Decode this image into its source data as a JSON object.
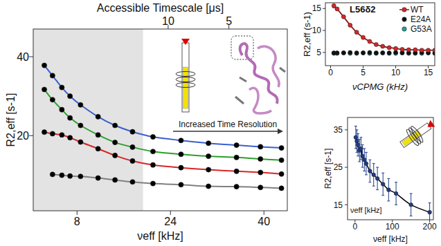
{
  "chart_data": [
    {
      "type": "line",
      "x_label": "νeff [kHz]",
      "y_label": "R2,eff [s-1]",
      "top_axis": {
        "label": "Accessible Timescale [μs]",
        "ticks": [
          {
            "value": 23.6,
            "label": "10"
          },
          {
            "value": 34,
            "label": "5"
          }
        ]
      },
      "shaded_region": [
        0.5,
        19.3
      ],
      "annotation": "Increased Time Resolution",
      "x": [
        2.4,
        3.8,
        5.4,
        6.8,
        8.6,
        11.6,
        14.5,
        17.5,
        21,
        25.8,
        30.5,
        35.3,
        39.4,
        43
      ],
      "series": [
        {
          "color": "#3a5fcd",
          "marker": "circle",
          "values": [
            37.8,
            35.2,
            32.2,
            30.0,
            27.8,
            24.8,
            22.6,
            21.0,
            19.7,
            18.8,
            18.1,
            17.6,
            17.2,
            16.9
          ]
        },
        {
          "color": "#2ca02c",
          "marker": "circle",
          "values": [
            31.7,
            29.1,
            26.6,
            24.5,
            22.6,
            20.2,
            18.3,
            17.1,
            16.0,
            15.3,
            14.8,
            14.5,
            14.1,
            13.8
          ]
        },
        {
          "color": "#d62728",
          "marker": "circle",
          "values": [
            20.9,
            20.5,
            20.2,
            19.5,
            18.4,
            16.7,
            15.0,
            13.6,
            12.6,
            11.9,
            11.4,
            11.0,
            10.7,
            10.3
          ]
        },
        {
          "color": "#808080",
          "marker": "circle",
          "values": [
            null,
            10.2,
            10.0,
            9.8,
            9.7,
            9.3,
            8.8,
            8.3,
            7.9,
            7.6,
            7.2,
            7.1,
            6.9,
            6.7
          ]
        }
      ],
      "xlim": [
        0.5,
        44
      ],
      "ylim": [
        1,
        47
      ],
      "xticks": [
        8,
        24,
        40
      ],
      "yticks": [
        20,
        40
      ]
    },
    {
      "type": "line",
      "x_label": "νCPMG (kHz)",
      "y_label": "R2,eff (s-1)",
      "annotation": "L56δ2",
      "legend": "upper right",
      "x": [
        0.5,
        1,
        2,
        3,
        4,
        5,
        6,
        7,
        8,
        9,
        10,
        11,
        12,
        13,
        14,
        15,
        16
      ],
      "series": [
        {
          "name": "G53A",
          "type": "scatter",
          "color": "#2a9d9d",
          "marker": "circle",
          "values": [
            4.8,
            4.8,
            4.9,
            4.8,
            4.8,
            4.9,
            4.8,
            4.8,
            4.9,
            4.8,
            4.8,
            4.9,
            4.8,
            4.8,
            4.8,
            4.9,
            4.8
          ]
        },
        {
          "name": "E24A",
          "type": "scatter",
          "color": "#111111",
          "marker": "circle",
          "values": [
            4.9,
            4.9,
            4.9,
            5.0,
            4.9,
            4.9,
            5.0,
            4.9,
            4.9,
            4.9,
            5.0,
            4.9,
            4.9,
            4.9,
            5.0,
            4.9,
            4.9
          ]
        },
        {
          "name": "WT",
          "type": "line",
          "color": "#d62728",
          "marker": "circle",
          "values": [
            15.6,
            14.9,
            13.1,
            11.2,
            9.6,
            8.4,
            7.5,
            6.8,
            6.4,
            6.1,
            5.9,
            5.7,
            5.6,
            5.6,
            5.5,
            5.5,
            5.5
          ],
          "errors": [
            0.4,
            0.3,
            0.3,
            0.3,
            0.3,
            0.3,
            0.3,
            0.3,
            0.3,
            0.3,
            0.3,
            0.3,
            0.3,
            0.3,
            0.3,
            0.3,
            0.3
          ]
        }
      ],
      "xlim": [
        -0.8,
        16
      ],
      "ylim": [
        2,
        16.3
      ],
      "xticks": [
        0,
        5,
        10,
        15
      ],
      "yticks": [
        5,
        10,
        15
      ]
    },
    {
      "type": "line",
      "x_label": "νeff [kHz]",
      "y_label": "R2,eff [s-1]",
      "annotation": "νeff [kHz]",
      "x": [
        2,
        5,
        8,
        12,
        16,
        20,
        25,
        30,
        40,
        50,
        60,
        75,
        90,
        110,
        150,
        200
      ],
      "series": [
        {
          "color": "#1f3c88",
          "marker": "circle",
          "values": [
            33,
            32,
            31,
            29.5,
            30,
            28,
            27,
            26,
            24,
            23,
            22,
            20.5,
            19,
            18,
            15,
            13
          ],
          "errors": [
            3,
            3,
            3,
            3,
            3,
            3,
            3,
            3,
            3,
            3,
            3,
            3,
            3,
            3,
            3,
            2.5
          ]
        }
      ],
      "xlim": [
        -20,
        210
      ],
      "ylim": [
        11,
        38.3
      ],
      "xticks": [
        0,
        100,
        200
      ],
      "yticks": [
        15,
        25,
        35
      ]
    }
  ]
}
